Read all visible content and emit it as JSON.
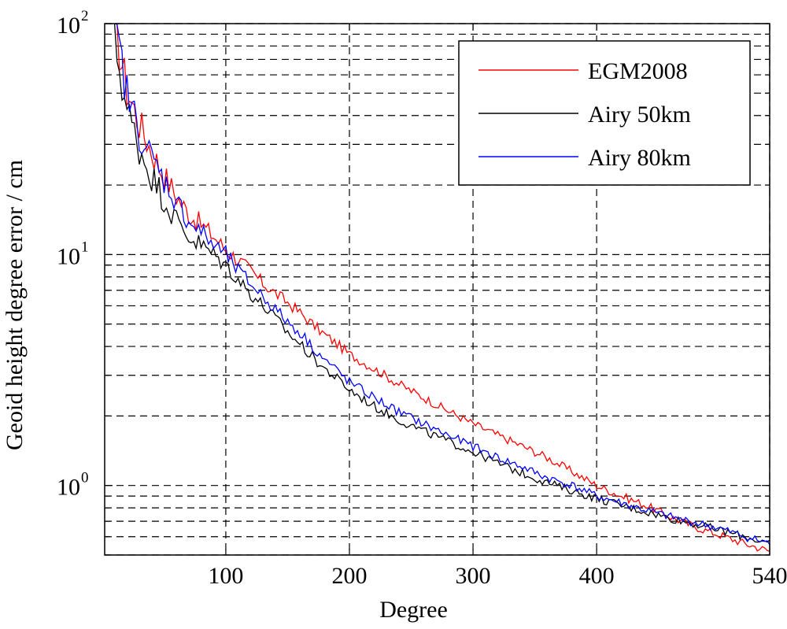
{
  "chart_data": {
    "type": "line",
    "xlabel": "Degree",
    "ylabel": "Geoid height degree error / cm",
    "x_scale": "linear",
    "y_scale": "log",
    "xlim": [
      2,
      540
    ],
    "ylim": [
      0.5,
      100
    ],
    "x_ticks": [
      100,
      200,
      300,
      400,
      540
    ],
    "x_tick_labels": [
      "100",
      "200",
      "300",
      "400",
      "540"
    ],
    "y_ticks": [
      1,
      10,
      100
    ],
    "y_tick_labels": [
      {
        "base": "10",
        "exp": "0"
      },
      {
        "base": "10",
        "exp": "1"
      },
      {
        "base": "10",
        "exp": "2"
      }
    ],
    "grid": "dashed",
    "legend_position": "top-right",
    "series": [
      {
        "name": "EGM2008",
        "color": "#ff0000",
        "x": [
          10,
          20,
          30,
          40,
          50,
          60,
          70,
          80,
          90,
          100,
          110,
          120,
          130,
          140,
          150,
          160,
          170,
          180,
          190,
          200,
          220,
          240,
          260,
          280,
          300,
          320,
          340,
          360,
          380,
          400,
          420,
          440,
          460,
          480,
          500,
          520,
          540
        ],
        "values": [
          100,
          52,
          37,
          28,
          22,
          18,
          15,
          13.5,
          12,
          10.5,
          9.5,
          8.5,
          7.5,
          6.8,
          6.2,
          5.6,
          5.0,
          4.5,
          4.1,
          3.7,
          3.2,
          2.75,
          2.4,
          2.1,
          1.85,
          1.65,
          1.48,
          1.32,
          1.15,
          1.0,
          0.9,
          0.82,
          0.73,
          0.66,
          0.61,
          0.56,
          0.52
        ]
      },
      {
        "name": "Airy 50km",
        "color": "#000000",
        "x": [
          10,
          20,
          30,
          40,
          50,
          60,
          70,
          80,
          90,
          100,
          110,
          120,
          130,
          140,
          150,
          160,
          170,
          180,
          190,
          200,
          220,
          240,
          260,
          280,
          300,
          320,
          340,
          360,
          380,
          400,
          420,
          440,
          460,
          480,
          500,
          520,
          540
        ],
        "values": [
          85,
          42,
          29,
          22,
          17.5,
          14,
          12,
          11,
          10,
          9.0,
          7.8,
          6.8,
          6.0,
          5.3,
          4.6,
          4.1,
          3.6,
          3.2,
          2.9,
          2.6,
          2.2,
          1.92,
          1.72,
          1.55,
          1.4,
          1.25,
          1.13,
          1.03,
          0.95,
          0.88,
          0.82,
          0.77,
          0.72,
          0.68,
          0.64,
          0.6,
          0.56
        ]
      },
      {
        "name": "Airy 80km",
        "color": "#0000ff",
        "x": [
          10,
          20,
          30,
          40,
          50,
          60,
          70,
          80,
          90,
          100,
          110,
          120,
          130,
          140,
          150,
          160,
          170,
          180,
          190,
          200,
          220,
          240,
          260,
          280,
          300,
          320,
          340,
          360,
          380,
          400,
          420,
          440,
          460,
          480,
          500,
          520,
          540
        ],
        "values": [
          100,
          50,
          34,
          26,
          21,
          17,
          14,
          12.5,
          11,
          10,
          8.5,
          7.5,
          6.6,
          5.8,
          5.1,
          4.6,
          4.0,
          3.5,
          3.15,
          2.8,
          2.4,
          2.08,
          1.85,
          1.65,
          1.48,
          1.32,
          1.2,
          1.08,
          1.0,
          0.9,
          0.84,
          0.78,
          0.73,
          0.69,
          0.65,
          0.6,
          0.56
        ]
      }
    ]
  }
}
